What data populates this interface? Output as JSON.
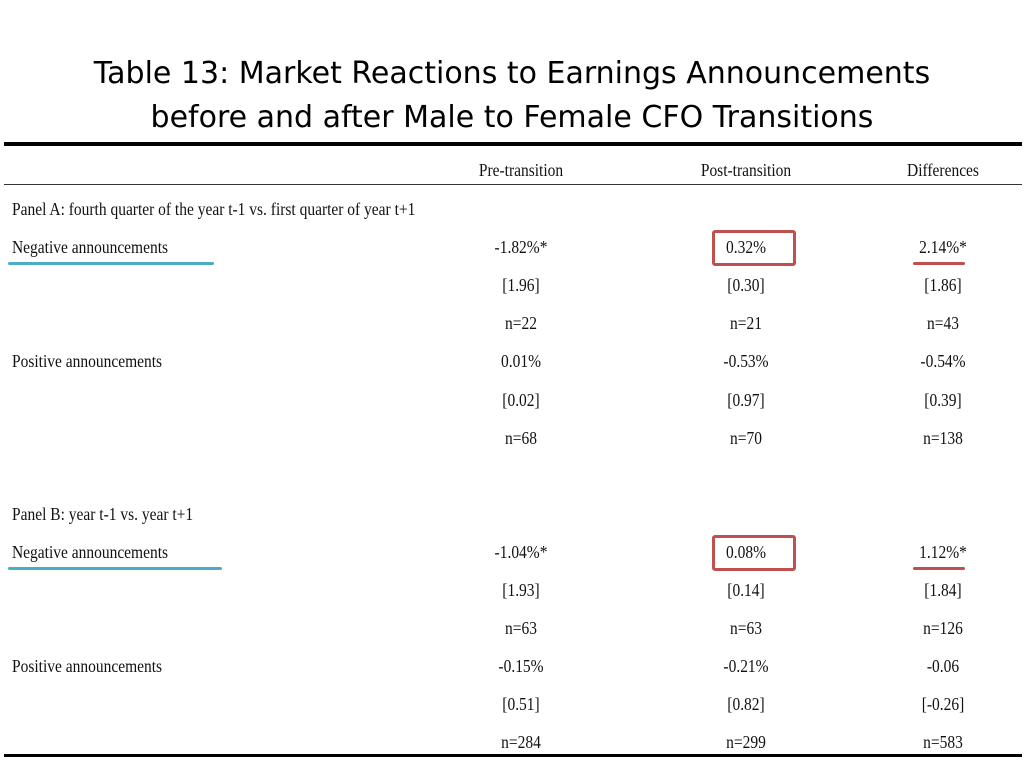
{
  "title": {
    "line1": "Table 13: Market Reactions to Earnings Announcements",
    "line2": "before and after Male to Female CFO Transitions"
  },
  "columns": {
    "pre": "Pre-transition",
    "post": "Post-transition",
    "diff": "Differences"
  },
  "panel_a": {
    "title": "Panel A: fourth quarter of the year t-1 vs. first quarter of year t+1",
    "negative": {
      "label": "Negative announcements",
      "pre": "-1.82%*",
      "post": "0.32%",
      "diff": "2.14%*",
      "pre_t": "[1.96]",
      "post_t": "[0.30]",
      "diff_t": "[1.86]",
      "pre_n": "n=22",
      "post_n": "n=21",
      "diff_n": "n=43"
    },
    "positive": {
      "label": "Positive announcements",
      "pre": "0.01%",
      "post": "-0.53%",
      "diff": "-0.54%",
      "pre_t": "[0.02]",
      "post_t": "[0.97]",
      "diff_t": "[0.39]",
      "pre_n": "n=68",
      "post_n": "n=70",
      "diff_n": "n=138"
    }
  },
  "panel_b": {
    "title": "Panel B: year t-1 vs. year t+1",
    "negative": {
      "label": "Negative announcements",
      "pre": "-1.04%*",
      "post": "0.08%",
      "diff": "1.12%*",
      "pre_t": "[1.93]",
      "post_t": "[0.14]",
      "diff_t": "[1.84]",
      "pre_n": "n=63",
      "post_n": "n=63",
      "diff_n": "n=126"
    },
    "positive": {
      "label": "Positive announcements",
      "pre": "-0.15%",
      "post": "-0.21%",
      "diff": "-0.06",
      "pre_t": "[0.51]",
      "post_t": "[0.82]",
      "diff_t": "[-0.26]",
      "pre_n": "n=284",
      "post_n": "n=299",
      "diff_n": "n=583"
    }
  },
  "colors": {
    "highlight_box": "#c0504d",
    "underline_blue": "#4bacc6",
    "underline_red": "#c0504d"
  }
}
